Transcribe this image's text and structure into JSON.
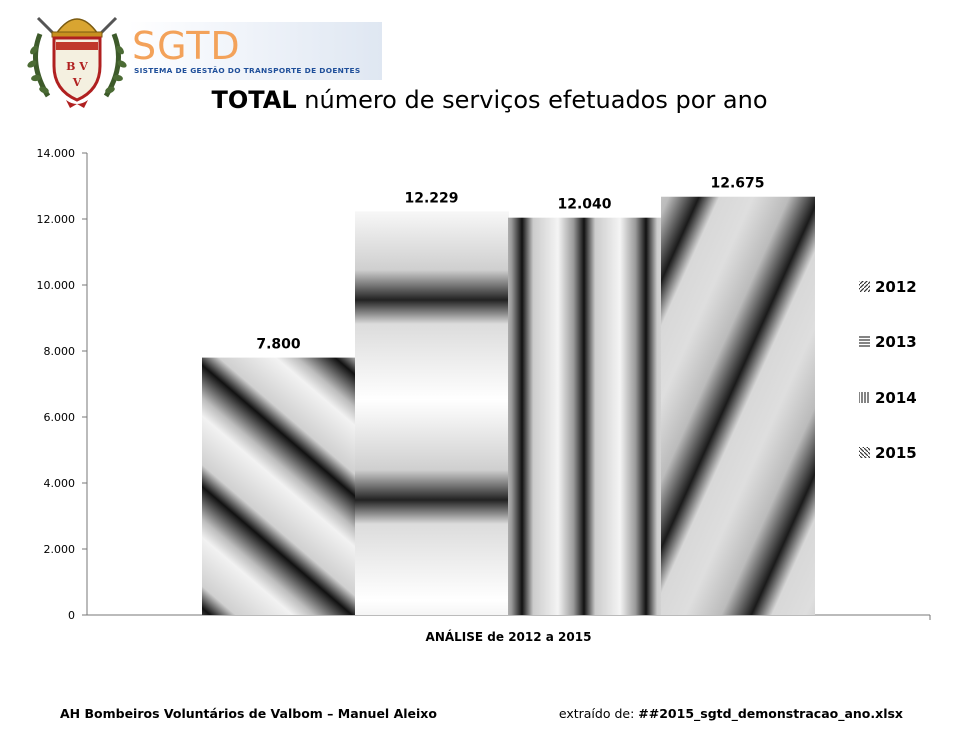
{
  "header": {
    "logo_text": "SGTD",
    "logo_subtitle": "SISTEMA DE GESTÃO DO TRANSPORTE DE DOENTES",
    "crest_text": "BV V"
  },
  "title": {
    "bold_part": "TOTAL",
    "rest": " número de serviços efetuados por ano"
  },
  "chart_data": {
    "type": "bar",
    "categories": [
      "ANÁLISE de 2012 a 2015"
    ],
    "series": [
      {
        "name": "2012",
        "values": [
          7800
        ],
        "label": "7.800",
        "pattern": "diag-right"
      },
      {
        "name": "2013",
        "values": [
          12229
        ],
        "label": "12.229",
        "pattern": "horizontal"
      },
      {
        "name": "2014",
        "values": [
          12040
        ],
        "label": "12.040",
        "pattern": "vertical"
      },
      {
        "name": "2015",
        "values": [
          12675
        ],
        "label": "12.675",
        "pattern": "diag-left"
      }
    ],
    "xlabel": "ANÁLISE de 2012 a 2015",
    "ylim": [
      0,
      14000
    ],
    "yticks": [
      0,
      2000,
      4000,
      6000,
      8000,
      10000,
      12000,
      14000
    ],
    "ytick_labels": [
      "0",
      "2.000",
      "4.000",
      "6.000",
      "8.000",
      "10.000",
      "12.000",
      "14.000"
    ],
    "legend_position": "right",
    "grid": false
  },
  "footer": {
    "left": "AH Bombeiros Voluntários de Valbom – Manuel Aleixo",
    "right_prefix": "extraído de: ",
    "right_file": "##2015_sgtd_demonstracao_ano.xlsx"
  }
}
